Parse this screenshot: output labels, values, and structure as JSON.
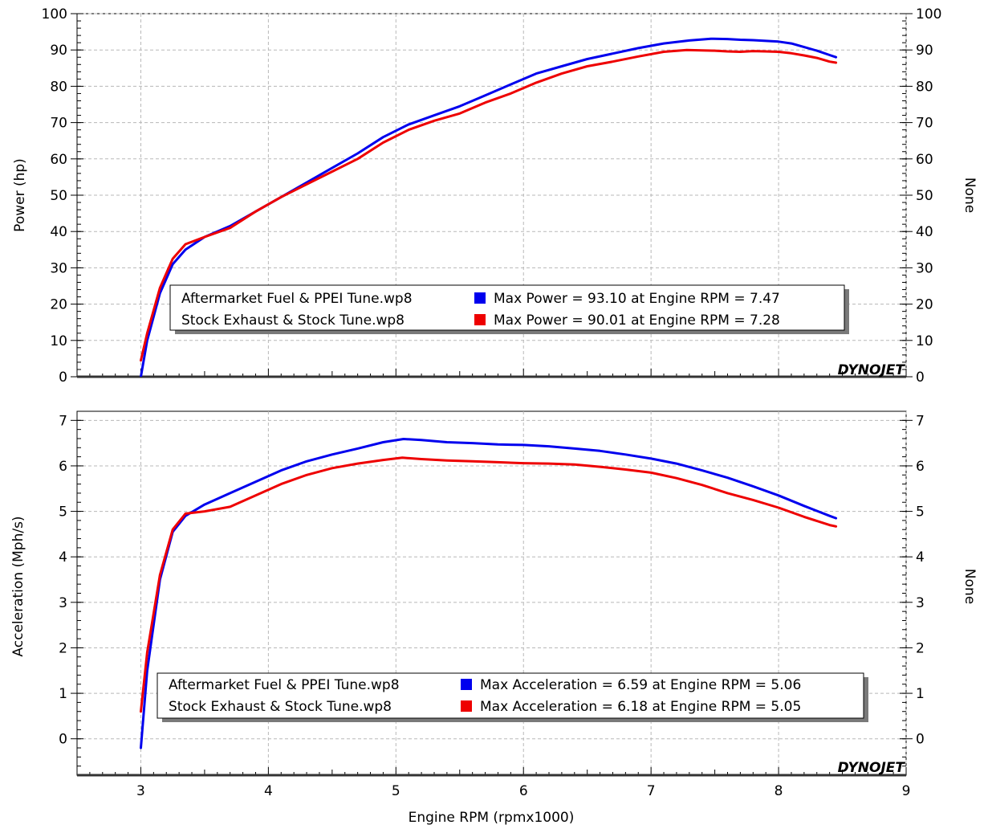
{
  "colors": {
    "series_1": "#0000ee",
    "series_2": "#ee0000",
    "grid": "#b8b8b8",
    "logo": "#dd0000"
  },
  "x_axis": {
    "label": "Engine RPM (rpmx1000)",
    "range": [
      2.5,
      9
    ],
    "tick_labels": [
      "3",
      "4",
      "5",
      "6",
      "7",
      "8",
      "9"
    ]
  },
  "logo": "DYNOJET",
  "chart_data": [
    {
      "type": "line",
      "grid": true,
      "legend_position": "bottom-center",
      "ylabel": "Power (hp)",
      "ylabel_right": "None",
      "xlabel": "",
      "xlim": [
        2.5,
        9
      ],
      "ylim": [
        0,
        100
      ],
      "x_tick_labels": [],
      "y_tick_labels": [
        "0",
        "10",
        "20",
        "30",
        "40",
        "50",
        "60",
        "70",
        "80",
        "90",
        "100"
      ],
      "series": [
        {
          "name": "Aftermarket Fuel & PPEI Tune.wp8",
          "legend_note": "Max Power = 93.10 at Engine RPM = 7.47",
          "x": [
            3.0,
            3.05,
            3.15,
            3.25,
            3.35,
            3.5,
            3.7,
            3.9,
            4.1,
            4.3,
            4.5,
            4.7,
            4.9,
            5.1,
            5.3,
            5.5,
            5.7,
            5.9,
            6.1,
            6.3,
            6.5,
            6.7,
            6.9,
            7.1,
            7.3,
            7.47,
            7.6,
            7.7,
            7.8,
            7.9,
            8.0,
            8.1,
            8.2,
            8.3,
            8.4,
            8.45
          ],
          "y": [
            0,
            10,
            23,
            31,
            35,
            38.5,
            41.5,
            45.5,
            49.5,
            53.5,
            57.5,
            61.5,
            66,
            69.5,
            72,
            74.5,
            77.5,
            80.5,
            83.5,
            85.5,
            87.5,
            89,
            90.5,
            91.8,
            92.6,
            93.1,
            93.0,
            92.8,
            92.7,
            92.5,
            92.3,
            91.8,
            90.8,
            89.8,
            88.6,
            88.0
          ]
        },
        {
          "name": "Stock Exhaust & Stock Tune.wp8",
          "legend_note": "Max Power = 90.01 at Engine RPM = 7.28",
          "x": [
            3.0,
            3.05,
            3.15,
            3.25,
            3.35,
            3.5,
            3.7,
            3.9,
            4.1,
            4.3,
            4.5,
            4.7,
            4.9,
            5.1,
            5.3,
            5.5,
            5.7,
            5.9,
            6.1,
            6.3,
            6.5,
            6.7,
            6.9,
            7.1,
            7.28,
            7.4,
            7.5,
            7.6,
            7.7,
            7.8,
            7.9,
            8.0,
            8.1,
            8.2,
            8.3,
            8.4,
            8.45
          ],
          "y": [
            4.5,
            12,
            24.5,
            32.5,
            36.5,
            38.5,
            41,
            45.5,
            49.5,
            53,
            56.5,
            60,
            64.5,
            68,
            70.5,
            72.5,
            75.5,
            78,
            81,
            83.5,
            85.5,
            86.8,
            88.2,
            89.5,
            90.01,
            89.9,
            89.8,
            89.6,
            89.5,
            89.7,
            89.6,
            89.5,
            89.1,
            88.5,
            87.8,
            86.8,
            86.5
          ]
        }
      ]
    },
    {
      "type": "line",
      "grid": true,
      "legend_position": "bottom-center",
      "ylabel": "Acceleration (Mph/s)",
      "ylabel_right": "None",
      "xlabel": "Engine RPM (rpmx1000)",
      "xlim": [
        2.5,
        9
      ],
      "ylim": [
        -0.8,
        7.2
      ],
      "x_tick_labels": [
        "3",
        "4",
        "5",
        "6",
        "7",
        "8",
        "9"
      ],
      "y_tick_labels": [
        "0",
        "1",
        "2",
        "3",
        "4",
        "5",
        "6",
        "7"
      ],
      "series": [
        {
          "name": "Aftermarket Fuel & PPEI Tune.wp8",
          "legend_note": "Max Acceleration = 6.59 at Engine RPM = 5.06",
          "x": [
            3.0,
            3.05,
            3.15,
            3.25,
            3.35,
            3.5,
            3.7,
            3.9,
            4.1,
            4.3,
            4.5,
            4.7,
            4.9,
            5.06,
            5.2,
            5.4,
            5.6,
            5.8,
            6.0,
            6.2,
            6.4,
            6.6,
            6.8,
            7.0,
            7.2,
            7.4,
            7.6,
            7.8,
            8.0,
            8.2,
            8.4,
            8.45
          ],
          "y": [
            -0.2,
            1.5,
            3.5,
            4.55,
            4.9,
            5.15,
            5.4,
            5.65,
            5.9,
            6.1,
            6.25,
            6.38,
            6.52,
            6.59,
            6.57,
            6.52,
            6.5,
            6.47,
            6.46,
            6.43,
            6.38,
            6.33,
            6.25,
            6.16,
            6.05,
            5.9,
            5.74,
            5.55,
            5.35,
            5.12,
            4.9,
            4.85
          ]
        },
        {
          "name": "Stock Exhaust & Stock Tune.wp8",
          "legend_note": "Max Acceleration = 6.18 at Engine RPM = 5.05",
          "x": [
            3.0,
            3.05,
            3.15,
            3.25,
            3.35,
            3.5,
            3.7,
            3.9,
            4.1,
            4.3,
            4.5,
            4.7,
            4.9,
            5.05,
            5.2,
            5.4,
            5.6,
            5.8,
            6.0,
            6.2,
            6.4,
            6.6,
            6.8,
            7.0,
            7.2,
            7.4,
            7.6,
            7.8,
            8.0,
            8.2,
            8.4,
            8.45
          ],
          "y": [
            0.6,
            1.9,
            3.6,
            4.6,
            4.95,
            5.0,
            5.1,
            5.35,
            5.6,
            5.8,
            5.95,
            6.05,
            6.13,
            6.18,
            6.15,
            6.12,
            6.1,
            6.08,
            6.06,
            6.05,
            6.03,
            5.98,
            5.92,
            5.85,
            5.73,
            5.58,
            5.4,
            5.25,
            5.08,
            4.88,
            4.7,
            4.67
          ]
        }
      ]
    }
  ]
}
